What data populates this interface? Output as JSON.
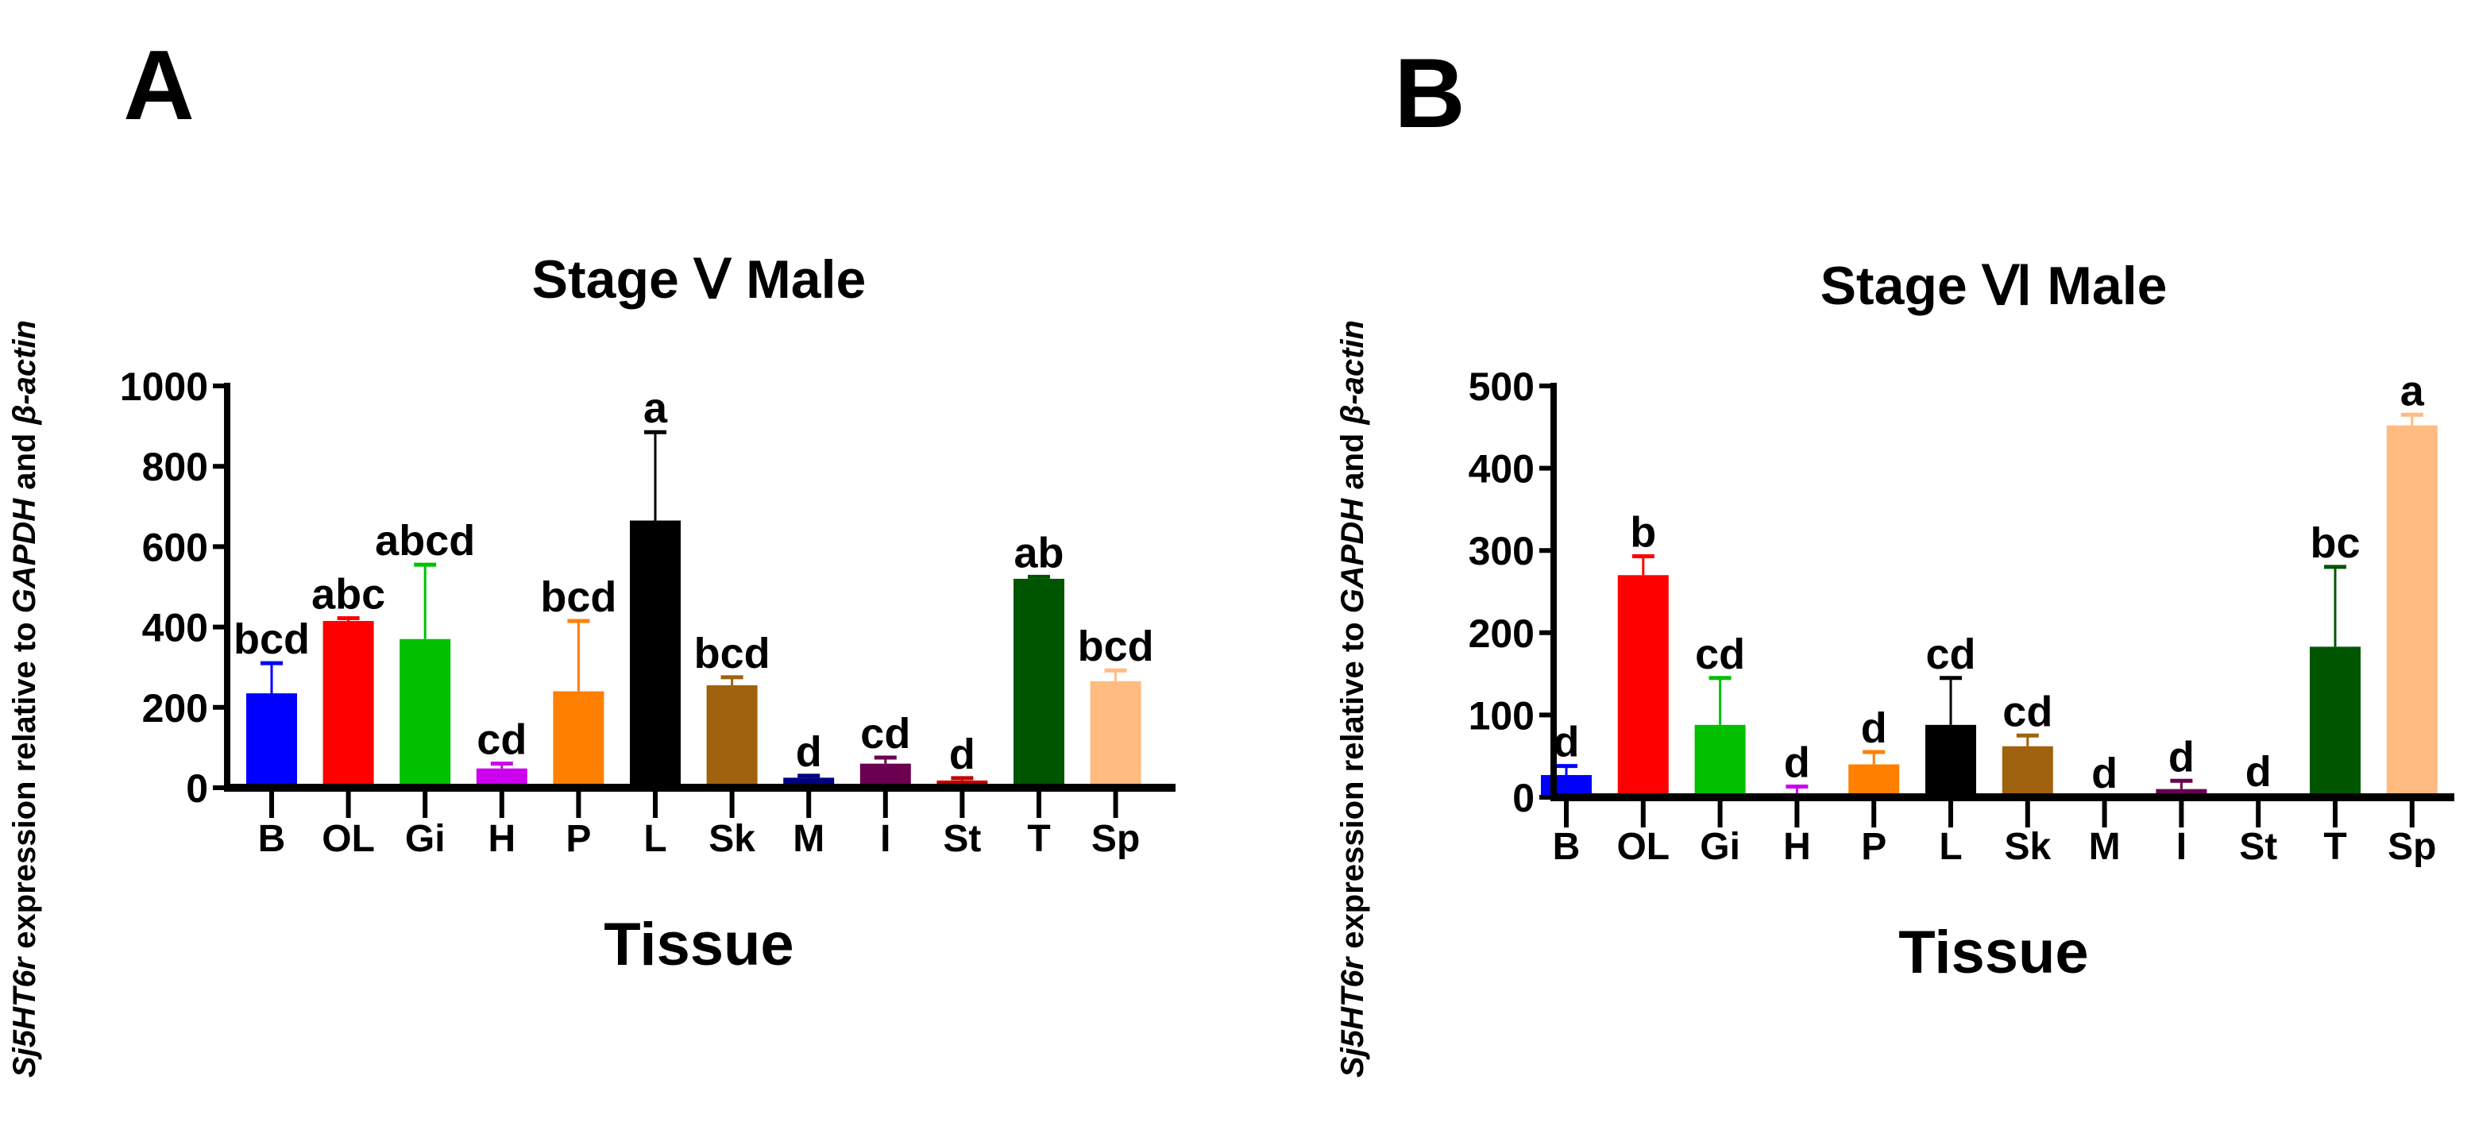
{
  "chart_data": [
    {
      "type": "bar",
      "panel_label": "A",
      "title": "Stage Ⅴ Male",
      "xlabel": "Tissue",
      "ylabel_parts": [
        {
          "text": "Sj5HT6r",
          "italic": true
        },
        {
          "text": " expression relative to ",
          "italic": false
        },
        {
          "text": "GAPDH",
          "italic": true
        },
        {
          "text": " and ",
          "italic": false
        },
        {
          "text": "β-actin",
          "italic": true
        }
      ],
      "ylim": [
        0,
        1000
      ],
      "yticks": [
        "0",
        "200",
        "400",
        "600",
        "800",
        "1000"
      ],
      "ytick_values": [
        0,
        200,
        400,
        600,
        800,
        1000
      ],
      "categories": [
        "B",
        "OL",
        "Gi",
        "H",
        "P",
        "L",
        "Sk",
        "M",
        "I",
        "St",
        "T",
        "Sp"
      ],
      "values": [
        235,
        415,
        370,
        48,
        240,
        665,
        255,
        25,
        60,
        18,
        520,
        265
      ],
      "error_upper": [
        310,
        422,
        555,
        60,
        415,
        885,
        275,
        30,
        75,
        24,
        525,
        292
      ],
      "significance": [
        "bcd",
        "abc",
        "abcd",
        "cd",
        "bcd",
        "a",
        "bcd",
        "d",
        "cd",
        "d",
        "ab",
        "bcd"
      ],
      "colors": [
        "#0000ff",
        "#ff0000",
        "#00c000",
        "#cc00ee",
        "#ff8000",
        "#000000",
        "#a0620e",
        "#000080",
        "#6b0050",
        "#c00000",
        "#005500",
        "#ffbb80"
      ]
    },
    {
      "type": "bar",
      "panel_label": "B",
      "title": "Stage Ⅵ Male",
      "xlabel": "Tissue",
      "ylabel_parts": [
        {
          "text": "Sj5HT6r",
          "italic": true
        },
        {
          "text": " expression relative to ",
          "italic": false
        },
        {
          "text": "GAPDH",
          "italic": true
        },
        {
          "text": " and ",
          "italic": false
        },
        {
          "text": "β-actin",
          "italic": true
        }
      ],
      "ylim": [
        0,
        500
      ],
      "yticks": [
        "0",
        "100",
        "200",
        "300",
        "400",
        "500"
      ],
      "ytick_values": [
        0,
        100,
        200,
        300,
        400,
        500
      ],
      "categories": [
        "B",
        "OL",
        "Gi",
        "H",
        "P",
        "L",
        "Sk",
        "M",
        "I",
        "St",
        "T",
        "Sp"
      ],
      "values": [
        27,
        270,
        88,
        4,
        40,
        88,
        62,
        0,
        10,
        2,
        183,
        452
      ],
      "error_upper": [
        38,
        293,
        145,
        13,
        55,
        145,
        75,
        0,
        20,
        2,
        280,
        465
      ],
      "significance": [
        "d",
        "b",
        "cd",
        "d",
        "d",
        "cd",
        "cd",
        "d",
        "d",
        "d",
        "bc",
        "a"
      ],
      "colors": [
        "#0000ff",
        "#ff0000",
        "#00c000",
        "#cc00ee",
        "#ff8000",
        "#000000",
        "#a0620e",
        "#000080",
        "#6b0050",
        "#c00000",
        "#005500",
        "#ffbb80"
      ]
    }
  ]
}
